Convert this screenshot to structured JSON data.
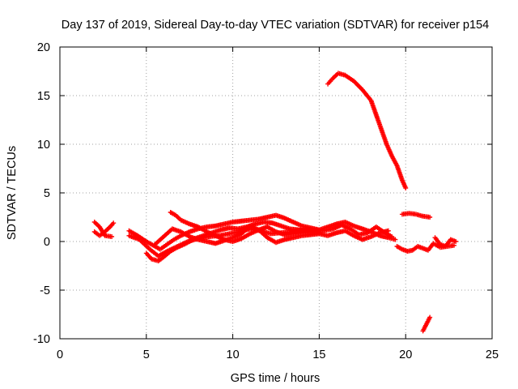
{
  "chart_data": {
    "type": "scatter",
    "title": "Day 137 of 2019, Sidereal Day-to-day VTEC variation (SDTVAR) for receiver p154",
    "xlabel": "GPS time / hours",
    "ylabel": "SDTVAR / TECUs",
    "xlim": [
      0,
      25
    ],
    "ylim": [
      -10,
      20
    ],
    "xticks": [
      0,
      5,
      10,
      15,
      20,
      25
    ],
    "yticks": [
      -10,
      -5,
      0,
      5,
      10,
      15,
      20
    ],
    "grid": true,
    "marker": "+",
    "color": "#ff0000",
    "series": [
      {
        "name": "seg-a",
        "x": [
          2.0,
          2.3,
          2.6,
          2.9,
          3.1
        ],
        "y": [
          1.0,
          0.6,
          1.0,
          1.5,
          1.9
        ]
      },
      {
        "name": "seg-b",
        "x": [
          2.0,
          2.3,
          2.6,
          3.0
        ],
        "y": [
          2.0,
          1.5,
          0.6,
          0.5
        ]
      },
      {
        "name": "seg-c",
        "x": [
          4.0,
          4.5,
          5.0,
          5.5,
          5.8,
          6.2,
          6.6,
          7.0,
          7.5,
          8.0,
          8.5,
          9.0,
          9.5,
          10.0,
          10.5,
          11.0,
          11.5,
          12.0,
          12.5,
          13.0,
          13.5,
          14.0,
          14.5,
          15.0,
          15.5,
          16.0,
          16.5,
          17.0,
          17.5,
          18.0,
          18.5,
          19.0,
          19.4
        ],
        "y": [
          1.1,
          0.6,
          0.0,
          -0.5,
          -0.8,
          -0.3,
          0.2,
          0.6,
          1.0,
          1.3,
          1.5,
          1.6,
          1.8,
          2.0,
          2.1,
          2.2,
          2.3,
          2.5,
          2.7,
          2.4,
          2.0,
          1.6,
          1.4,
          1.2,
          1.5,
          1.8,
          2.0,
          1.6,
          1.3,
          1.0,
          0.6,
          0.4,
          0.2
        ]
      },
      {
        "name": "seg-d",
        "x": [
          4.0,
          4.6,
          5.2,
          5.7,
          6.2,
          6.8,
          7.4,
          8.0,
          8.6,
          9.2,
          9.8,
          10.4,
          11.0,
          11.6,
          12.2,
          12.8,
          13.4,
          14.0,
          14.6,
          15.2,
          15.8,
          16.3,
          16.8,
          17.3,
          17.8,
          18.3,
          18.8,
          19.2
        ],
        "y": [
          0.6,
          0.2,
          -0.8,
          -1.5,
          -1.0,
          -0.5,
          0.0,
          0.3,
          0.5,
          0.6,
          0.8,
          1.0,
          1.3,
          1.1,
          0.8,
          0.9,
          1.0,
          1.2,
          1.2,
          1.1,
          1.3,
          1.7,
          1.3,
          0.7,
          0.9,
          1.5,
          0.9,
          0.5
        ]
      },
      {
        "name": "seg-e",
        "x": [
          5.0,
          5.3,
          5.7,
          6.0,
          6.4,
          6.8,
          7.3,
          7.8,
          8.3,
          8.8,
          9.3,
          9.8,
          10.3,
          10.8,
          11.3,
          11.8,
          12.3,
          12.8,
          13.3,
          13.8,
          14.3
        ],
        "y": [
          -1.2,
          -1.8,
          -2.0,
          -1.6,
          -1.0,
          -0.6,
          -0.2,
          0.3,
          0.6,
          0.9,
          1.2,
          1.4,
          1.3,
          1.5,
          1.8,
          2.0,
          1.9,
          1.6,
          1.3,
          1.2,
          1.1
        ]
      },
      {
        "name": "seg-f",
        "x": [
          6.4,
          6.7,
          7.0,
          7.5,
          8.0,
          8.5,
          9.0,
          9.5,
          10.0,
          10.5,
          11.0,
          11.5,
          12.0,
          12.5,
          13.0,
          13.5,
          14.0,
          14.5,
          15.0
        ],
        "y": [
          3.0,
          2.7,
          2.2,
          1.8,
          1.5,
          1.0,
          0.6,
          0.2,
          0.0,
          0.3,
          0.8,
          1.2,
          1.5,
          1.0,
          0.7,
          0.8,
          0.9,
          1.0,
          0.9
        ]
      },
      {
        "name": "seg-g",
        "x": [
          5.5,
          6.0,
          6.5,
          7.0,
          7.5,
          8.0,
          8.5,
          9.0,
          9.5,
          10.0,
          10.5,
          11.0,
          11.5,
          12.0,
          12.5,
          13.0,
          13.5,
          14.0,
          14.5,
          15.0,
          15.5,
          16.0,
          16.5,
          17.0,
          17.5,
          18.0,
          18.5,
          19.0
        ],
        "y": [
          -0.3,
          0.5,
          1.3,
          1.0,
          0.5,
          0.2,
          0.0,
          -0.2,
          0.1,
          0.4,
          0.8,
          1.6,
          1.2,
          0.4,
          -0.1,
          0.2,
          0.4,
          0.6,
          0.7,
          0.8,
          0.6,
          0.9,
          1.1,
          0.6,
          0.2,
          0.5,
          0.9,
          1.1
        ]
      },
      {
        "name": "seg-h",
        "x": [
          15.5,
          15.8,
          16.1,
          16.5,
          17.0,
          17.5,
          18.0,
          18.3,
          18.6,
          18.9,
          19.2,
          19.5,
          19.8,
          20.0
        ],
        "y": [
          16.2,
          16.8,
          17.3,
          17.1,
          16.5,
          15.6,
          14.5,
          13.0,
          11.5,
          10.0,
          8.8,
          7.8,
          6.3,
          5.5
        ]
      },
      {
        "name": "seg-i",
        "x": [
          19.8,
          20.2,
          20.6,
          21.0,
          21.4
        ],
        "y": [
          2.8,
          2.9,
          2.8,
          2.6,
          2.5
        ]
      },
      {
        "name": "seg-j",
        "x": [
          19.5,
          19.8,
          20.1,
          20.4,
          20.7,
          21.0,
          21.3,
          21.6,
          22.0,
          22.4,
          22.8
        ],
        "y": [
          -0.5,
          -0.8,
          -1.0,
          -0.9,
          -0.5,
          -0.7,
          -0.9,
          -0.2,
          -0.6,
          -0.5,
          -0.4
        ]
      },
      {
        "name": "seg-k",
        "x": [
          21.7,
          22.0,
          22.3,
          22.6,
          22.9
        ],
        "y": [
          0.4,
          -0.3,
          -0.5,
          0.2,
          0.0
        ]
      },
      {
        "name": "seg-l",
        "x": [
          21.0,
          21.2,
          21.4
        ],
        "y": [
          -9.2,
          -8.5,
          -7.8
        ]
      }
    ]
  }
}
